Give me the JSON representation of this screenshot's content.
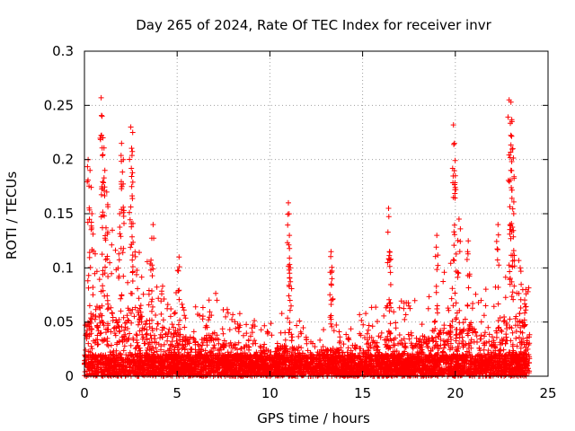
{
  "chart_data": {
    "type": "scatter",
    "title": "Day 265 of 2024, Rate Of TEC Index for receiver invr",
    "xlabel": "GPS time / hours",
    "ylabel": "ROTI / TECUs",
    "xlim": [
      0,
      25
    ],
    "ylim": [
      0,
      0.3
    ],
    "x_ticks": [
      0,
      5,
      10,
      15,
      20,
      25
    ],
    "y_ticks": [
      0,
      0.05,
      0.1,
      0.15,
      0.2,
      0.25,
      0.3
    ],
    "x_tick_labels": [
      "0",
      "5",
      "10",
      "15",
      "20",
      "25"
    ],
    "y_tick_labels": [
      "0",
      "0.05",
      "0.1",
      "0.15",
      "0.2",
      "0.25",
      "0.3"
    ],
    "grid": true,
    "marker": "+",
    "color": "#ff0000",
    "series": [
      {
        "name": "ROTI",
        "x_range": [
          0,
          24
        ],
        "background_level": 0.02,
        "notable_points": [
          {
            "x": 0.2,
            "y": 0.2
          },
          {
            "x": 0.3,
            "y": 0.19
          },
          {
            "x": 0.4,
            "y": 0.15
          },
          {
            "x": 0.9,
            "y": 0.257
          },
          {
            "x": 0.95,
            "y": 0.24
          },
          {
            "x": 1.0,
            "y": 0.22
          },
          {
            "x": 1.1,
            "y": 0.19
          },
          {
            "x": 1.2,
            "y": 0.17
          },
          {
            "x": 1.9,
            "y": 0.15
          },
          {
            "x": 2.0,
            "y": 0.215
          },
          {
            "x": 2.1,
            "y": 0.2
          },
          {
            "x": 2.5,
            "y": 0.23
          },
          {
            "x": 2.6,
            "y": 0.225
          },
          {
            "x": 2.55,
            "y": 0.175
          },
          {
            "x": 3.7,
            "y": 0.14
          },
          {
            "x": 5.1,
            "y": 0.11
          },
          {
            "x": 11.0,
            "y": 0.16
          },
          {
            "x": 11.05,
            "y": 0.13
          },
          {
            "x": 11.1,
            "y": 0.1
          },
          {
            "x": 13.3,
            "y": 0.115
          },
          {
            "x": 13.35,
            "y": 0.09
          },
          {
            "x": 16.4,
            "y": 0.155
          },
          {
            "x": 16.45,
            "y": 0.115
          },
          {
            "x": 19.0,
            "y": 0.13
          },
          {
            "x": 19.9,
            "y": 0.232
          },
          {
            "x": 19.95,
            "y": 0.215
          },
          {
            "x": 20.0,
            "y": 0.185
          },
          {
            "x": 20.2,
            "y": 0.145
          },
          {
            "x": 20.7,
            "y": 0.125
          },
          {
            "x": 22.3,
            "y": 0.14
          },
          {
            "x": 22.9,
            "y": 0.255
          },
          {
            "x": 23.0,
            "y": 0.253
          },
          {
            "x": 23.05,
            "y": 0.235
          },
          {
            "x": 23.1,
            "y": 0.21
          },
          {
            "x": 23.0,
            "y": 0.19
          },
          {
            "x": 23.15,
            "y": 0.15
          },
          {
            "x": 23.5,
            "y": 0.1
          },
          {
            "x": 23.8,
            "y": 0.08
          }
        ],
        "envelope": [
          {
            "x": 0,
            "y": 0.1
          },
          {
            "x": 1,
            "y": 0.14
          },
          {
            "x": 2,
            "y": 0.13
          },
          {
            "x": 3,
            "y": 0.12
          },
          {
            "x": 4,
            "y": 0.1
          },
          {
            "x": 5,
            "y": 0.08
          },
          {
            "x": 6,
            "y": 0.07
          },
          {
            "x": 7,
            "y": 0.08
          },
          {
            "x": 8,
            "y": 0.06
          },
          {
            "x": 9,
            "y": 0.055
          },
          {
            "x": 10,
            "y": 0.055
          },
          {
            "x": 11,
            "y": 0.06
          },
          {
            "x": 12,
            "y": 0.045
          },
          {
            "x": 13,
            "y": 0.05
          },
          {
            "x": 14,
            "y": 0.055
          },
          {
            "x": 15,
            "y": 0.06
          },
          {
            "x": 16,
            "y": 0.07
          },
          {
            "x": 17,
            "y": 0.07
          },
          {
            "x": 18,
            "y": 0.07
          },
          {
            "x": 19,
            "y": 0.09
          },
          {
            "x": 20,
            "y": 0.11
          },
          {
            "x": 21,
            "y": 0.09
          },
          {
            "x": 22,
            "y": 0.08
          },
          {
            "x": 23,
            "y": 0.12
          },
          {
            "x": 24,
            "y": 0.09
          }
        ]
      }
    ]
  }
}
